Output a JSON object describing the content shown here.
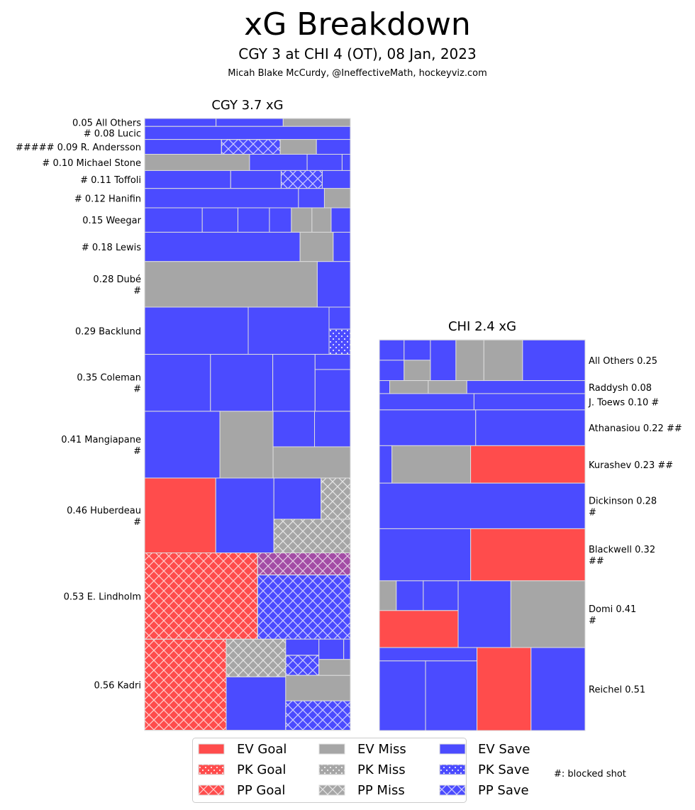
{
  "title": "xG Breakdown",
  "subtitle": "CGY 3 at CHI 4 (OT), 08 Jan, 2023",
  "credit": "Micah Blake McCurdy, @IneffectiveMath, hockeyviz.com",
  "blocked_note": "#: blocked shot",
  "colors": {
    "Goal": "#ff4c4c",
    "Miss": "#a6a6a6",
    "Save": "#4b4bff",
    "border": "#dddddd"
  },
  "legend": [
    {
      "label": "EV Goal",
      "type": "EV Goal"
    },
    {
      "label": "PK Goal",
      "type": "PK Goal"
    },
    {
      "label": "PP Goal",
      "type": "PP Goal"
    },
    {
      "label": "EV Miss",
      "type": "EV Miss"
    },
    {
      "label": "PK Miss",
      "type": "PK Miss"
    },
    {
      "label": "PP Miss",
      "type": "PP Miss"
    },
    {
      "label": "EV Save",
      "type": "EV Save"
    },
    {
      "label": "PK Save",
      "type": "PK Save"
    },
    {
      "label": "PP Save",
      "type": "PP Save"
    }
  ],
  "chart_data": {
    "type": "treemap",
    "panels": [
      {
        "team": "CGY",
        "title": "CGY 3.7 xG",
        "label_side": "left",
        "players": [
          {
            "label": "0.05 All Others",
            "c": [
              {
                "xg": 0.017,
                "t": "EV Save"
              },
              {
                "xg": 0.016,
                "t": "EV Save"
              },
              {
                "xg": 0.016,
                "t": "EV Miss"
              }
            ]
          },
          {
            "label": "# 0.08 Lucic",
            "c": [
              {
                "xg": 0.08,
                "t": "EV Save"
              }
            ]
          },
          {
            "label": "##### 0.09 R. Andersson",
            "c": [
              {
                "xg": 0.034,
                "t": "EV Save"
              },
              {
                "xg": 0.026,
                "t": "PP Save"
              },
              {
                "xg": 0.016,
                "t": "EV Miss"
              },
              {
                "xg": 0.015,
                "t": "EV Save"
              }
            ]
          },
          {
            "label": "# 0.10 Michael Stone",
            "c": [
              {
                "xg": 0.051,
                "t": "EV Miss"
              },
              {
                "xg": 0.028,
                "t": "EV Save"
              },
              {
                "xg": 0.017,
                "t": "EV Save"
              },
              {
                "xg": 0.004,
                "t": "EV Save"
              }
            ]
          },
          {
            "label": "# 0.11 Toffoli",
            "c": [
              {
                "xg": 0.046,
                "t": "EV Save"
              },
              {
                "xg": 0.027,
                "t": "EV Save"
              },
              {
                "xg": 0.022,
                "t": "PP Save"
              },
              {
                "xg": 0.015,
                "t": "EV Save"
              }
            ]
          },
          {
            "label": "# 0.12 Hanifin",
            "c": [
              {
                "xg": 0.089,
                "t": "EV Save"
              },
              {
                "xg": 0.015,
                "t": "EV Save"
              },
              {
                "xg": 0.015,
                "t": "EV Miss"
              }
            ]
          },
          {
            "label": "0.15 Weegar",
            "c": [
              {
                "xg": 0.042,
                "t": "EV Save"
              },
              {
                "xg": 0.026,
                "t": "EV Save"
              },
              {
                "xg": 0.023,
                "t": "EV Save"
              },
              {
                "xg": 0.016,
                "t": "EV Save"
              },
              {
                "xg": 0.015,
                "t": "EV Miss"
              },
              {
                "xg": 0.014,
                "t": "EV Miss"
              },
              {
                "xg": 0.014,
                "t": "EV Save"
              }
            ]
          },
          {
            "label": "# 0.18 Lewis",
            "c": [
              {
                "xg": 0.136,
                "t": "EV Save"
              },
              {
                "xg": 0.029,
                "t": "EV Miss"
              },
              {
                "xg": 0.015,
                "t": "EV Save"
              }
            ]
          },
          {
            "label": "0.28 Dubé\n#",
            "c": [
              {
                "xg": 0.235,
                "t": "EV Miss"
              },
              {
                "xg": 0.045,
                "t": "EV Save"
              }
            ]
          },
          {
            "label": "0.29 Backlund",
            "c": [
              {
                "xg": 0.146,
                "t": "EV Save"
              },
              {
                "xg": 0.114,
                "t": "EV Save"
              },
              {
                "d": "v",
                "c": [
                  {
                    "xg": 0.014,
                    "t": "EV Save"
                  },
                  {
                    "xg": 0.016,
                    "t": "PK Save"
                  }
                ]
              }
            ]
          },
          {
            "label": "0.35 Coleman\n#",
            "c": [
              {
                "xg": 0.112,
                "t": "EV Save"
              },
              {
                "xg": 0.106,
                "t": "EV Save"
              },
              {
                "xg": 0.072,
                "t": "EV Save"
              },
              {
                "d": "v",
                "c": [
                  {
                    "xg": 0.016,
                    "t": "EV Save"
                  },
                  {
                    "xg": 0.044,
                    "t": "EV Save"
                  }
                ]
              }
            ]
          },
          {
            "label": "0.41 Mangiapane\n#",
            "c": [
              {
                "xg": 0.15,
                "t": "EV Save"
              },
              {
                "xg": 0.106,
                "t": "EV Miss"
              },
              {
                "d": "v",
                "c": [
                  {
                    "d": "h",
                    "c": [
                      {
                        "xg": 0.044,
                        "t": "EV Save"
                      },
                      {
                        "xg": 0.038,
                        "t": "EV Save"
                      }
                    ]
                  },
                  {
                    "xg": 0.072,
                    "t": "EV Miss"
                  }
                ]
              }
            ]
          },
          {
            "label": "0.46 Huberdeau\n#",
            "c": [
              {
                "xg": 0.159,
                "t": "EV Goal"
              },
              {
                "xg": 0.13,
                "t": "EV Save"
              },
              {
                "d": "v",
                "c": [
                  {
                    "d": "h",
                    "c": [
                      {
                        "xg": 0.058,
                        "t": "EV Save"
                      },
                      {
                        "xg": 0.036,
                        "t": "PP Miss"
                      }
                    ]
                  },
                  {
                    "xg": 0.077,
                    "t": "PP Miss"
                  }
                ]
              }
            ]
          },
          {
            "label": "0.53 E. Lindholm",
            "c": [
              {
                "xg": 0.291,
                "t": "PP Goal"
              },
              {
                "d": "v",
                "c": [
                  {
                    "xg": 0.061,
                    "t": "PP Save",
                    "fill": "#a34ca5"
                  },
                  {
                    "xg": 0.178,
                    "t": "PP Save"
                  }
                ]
              }
            ]
          },
          {
            "label": "0.56 Kadri",
            "c": [
              {
                "xg": 0.222,
                "t": "PP Goal"
              },
              {
                "d": "v",
                "c": [
                  {
                    "xg": 0.067,
                    "t": "PP Miss"
                  },
                  {
                    "xg": 0.095,
                    "t": "EV Save"
                  }
                ]
              },
              {
                "d": "v",
                "c": [
                  {
                    "d": "h",
                    "c": [
                      {
                        "d": "v",
                        "c": [
                          {
                            "xg": 0.016,
                            "t": "EV Save"
                          },
                          {
                            "xg": 0.02,
                            "t": "PP Save"
                          }
                        ]
                      },
                      {
                        "d": "v",
                        "c": [
                          {
                            "d": "h",
                            "c": [
                              {
                                "xg": 0.015,
                                "t": "EV Save"
                              },
                              {
                                "xg": 0.004,
                                "t": "EV Save"
                              }
                            ]
                          },
                          {
                            "xg": 0.015,
                            "t": "EV Miss"
                          }
                        ]
                      }
                    ]
                  },
                  {
                    "xg": 0.049,
                    "t": "EV Miss"
                  },
                  {
                    "xg": 0.057,
                    "t": "PP Save"
                  }
                ]
              }
            ]
          }
        ]
      },
      {
        "team": "CHI",
        "title": "CHI 2.4 xG",
        "label_side": "right",
        "players": [
          {
            "label": "All Others 0.25",
            "c": [
              {
                "d": "v",
                "c": [
                  {
                    "xg": 0.015,
                    "t": "EV Save"
                  },
                  {
                    "xg": 0.015,
                    "t": "EV Save"
                  }
                ]
              },
              {
                "d": "v",
                "c": [
                  {
                    "xg": 0.016,
                    "t": "EV Save"
                  },
                  {
                    "xg": 0.016,
                    "t": "EV Miss"
                  }
                ]
              },
              {
                "xg": 0.031,
                "t": "EV Save"
              },
              {
                "xg": 0.034,
                "t": "EV Miss"
              },
              {
                "xg": 0.047,
                "t": "EV Miss"
              },
              {
                "xg": 0.076,
                "t": "EV Save"
              }
            ]
          },
          {
            "label": "Raddysh 0.08",
            "c": [
              {
                "xg": 0.004,
                "t": "EV Save"
              },
              {
                "xg": 0.015,
                "t": "EV Miss"
              },
              {
                "xg": 0.015,
                "t": "EV Miss"
              },
              {
                "xg": 0.046,
                "t": "EV Save"
              }
            ]
          },
          {
            "label": "J. Toews 0.10 #",
            "c": [
              {
                "xg": 0.046,
                "t": "EV Save"
              },
              {
                "xg": 0.054,
                "t": "EV Save"
              }
            ]
          },
          {
            "label": "Athanasiou 0.22 ##",
            "c": [
              {
                "xg": 0.103,
                "t": "EV Save"
              },
              {
                "xg": 0.117,
                "t": "EV Save"
              }
            ]
          },
          {
            "label": "Kurashev 0.23 ##",
            "c": [
              {
                "xg": 0.014,
                "t": "EV Save"
              },
              {
                "xg": 0.088,
                "t": "EV Miss"
              },
              {
                "xg": 0.128,
                "t": "EV Goal"
              }
            ]
          },
          {
            "label": "Dickinson 0.28\n#",
            "c": [
              {
                "xg": 0.28,
                "t": "EV Save"
              }
            ]
          },
          {
            "label": "Blackwell 0.32\n##",
            "c": [
              {
                "xg": 0.142,
                "t": "EV Save"
              },
              {
                "xg": 0.178,
                "t": "EV Goal"
              }
            ]
          },
          {
            "label": "Domi 0.41\n#",
            "c": [
              {
                "d": "v",
                "c": [
                  {
                    "d": "h",
                    "c": [
                      {
                        "xg": 0.015,
                        "t": "EV Miss"
                      },
                      {
                        "xg": 0.024,
                        "t": "EV Save"
                      },
                      {
                        "xg": 0.031,
                        "t": "EV Save"
                      }
                    ]
                  },
                  {
                    "xg": 0.087,
                    "t": "EV Goal"
                  }
                ]
              },
              {
                "xg": 0.105,
                "t": "EV Save"
              },
              {
                "xg": 0.148,
                "t": "EV Miss"
              }
            ]
          },
          {
            "label": "Reichel 0.51",
            "c": [
              {
                "d": "v",
                "c": [
                  {
                    "xg": 0.039,
                    "t": "EV Save"
                  },
                  {
                    "d": "h",
                    "c": [
                      {
                        "xg": 0.096,
                        "t": "EV Save"
                      },
                      {
                        "xg": 0.107,
                        "t": "EV Save"
                      }
                    ]
                  }
                ]
              },
              {
                "xg": 0.134,
                "t": "EV Goal"
              },
              {
                "xg": 0.134,
                "t": "EV Save"
              }
            ]
          }
        ]
      }
    ]
  }
}
